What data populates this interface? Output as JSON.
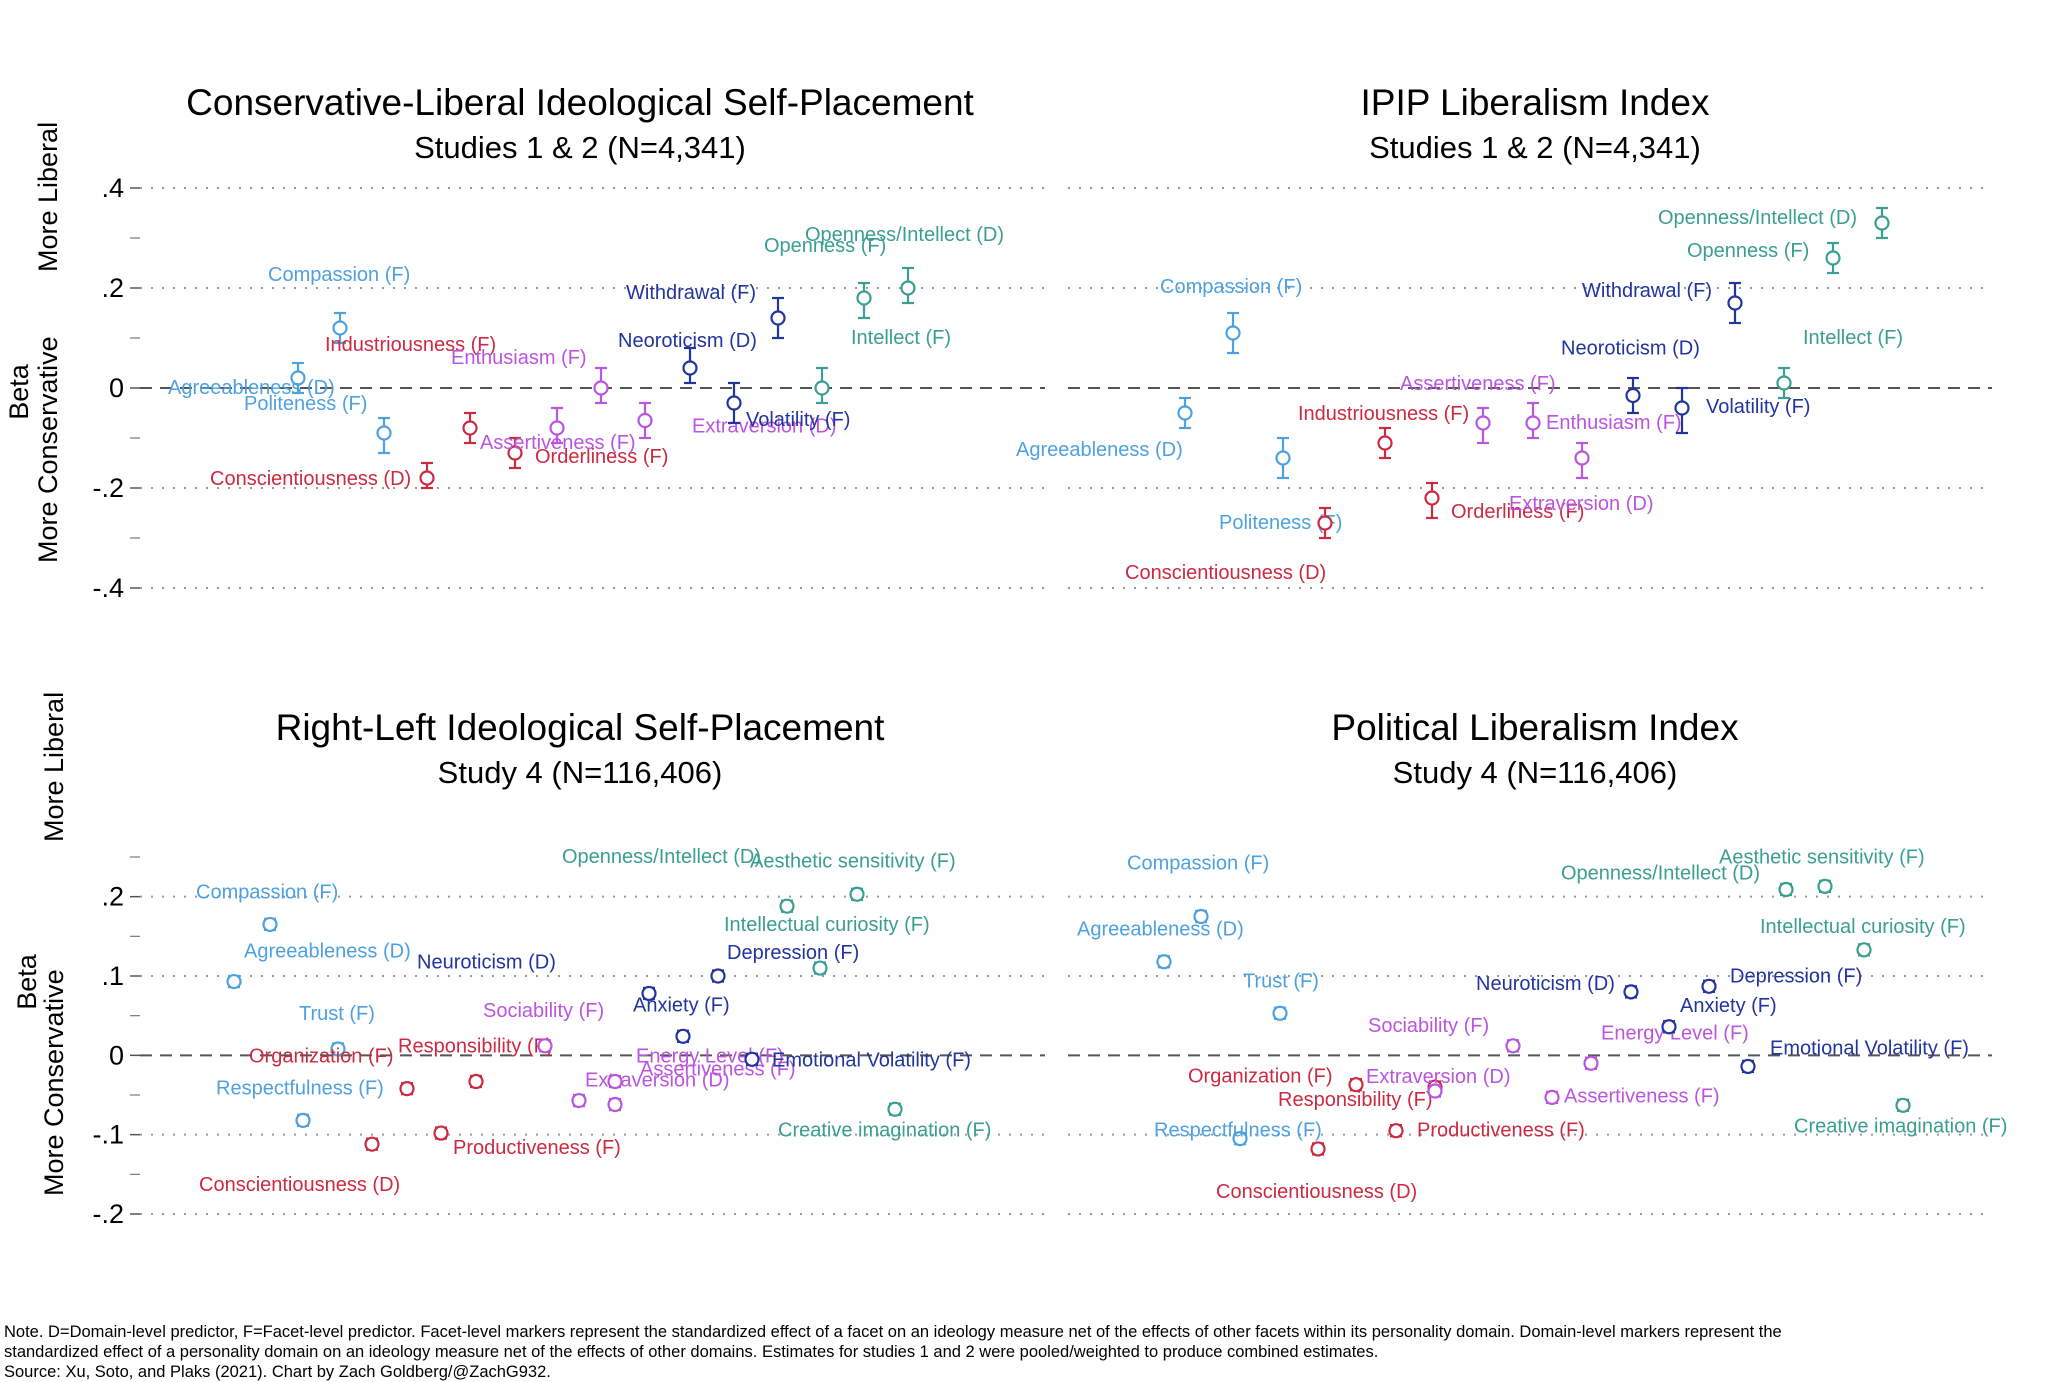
{
  "colors": {
    "agreeableness": "#4ea1e0",
    "conscientiousness": "#cc2a41",
    "extraversion": "#bb55e0",
    "neuroticism": "#22349e",
    "openness": "#3a9e92"
  },
  "note": {
    "line1": "Note. D=Domain-level predictor, F=Facet-level predictor. Facet-level markers represent the standardized effect of a facet on an ideology measure net of the effects of other facets within its personality domain. Domain-level markers represent the",
    "line2": "standardized effect of a personality domain on an ideology measure net of the effects of other domains. Estimates for studies 1 and 2 were pooled/weighted to produce combined estimates.",
    "line3": "Source: Xu, Soto, and Plaks (2021). Chart by Zach Goldberg/@ZachG932."
  },
  "chart_data": [
    {
      "type": "scatter",
      "title": "Conservative-Liberal Ideological Self-Placement",
      "subtitle": "Studies 1 & 2 (N=4,341)",
      "ylabel": "Beta",
      "ylabel_top": "More Liberal",
      "ylabel_bottom": "More Conservative",
      "ylim": [
        -0.4,
        0.4
      ],
      "yticks": [
        0.4,
        0.2,
        0,
        -0.2,
        -0.4
      ],
      "yticklabels": [
        ".4",
        ".2",
        "0",
        "-.2",
        "-.4"
      ],
      "points": [
        {
          "label": "Compassion (F)",
          "group": "agreeableness",
          "y": 0.12,
          "lo": 0.09,
          "hi": 0.15
        },
        {
          "label": "Agreeableness (D)",
          "group": "agreeableness",
          "y": 0.02,
          "lo": -0.01,
          "hi": 0.05
        },
        {
          "label": "Politeness (F)",
          "group": "agreeableness",
          "y": -0.09,
          "lo": -0.13,
          "hi": -0.06
        },
        {
          "label": "Conscientiousness (D)",
          "group": "conscientiousness",
          "y": -0.18,
          "lo": -0.2,
          "hi": -0.15
        },
        {
          "label": "Industriousness (F)",
          "group": "conscientiousness",
          "y": -0.08,
          "lo": -0.11,
          "hi": -0.05
        },
        {
          "label": "Orderliness (F)",
          "group": "conscientiousness",
          "y": -0.13,
          "lo": -0.16,
          "hi": -0.1
        },
        {
          "label": "Assertiveness (F)",
          "group": "extraversion",
          "y": -0.08,
          "lo": -0.11,
          "hi": -0.04
        },
        {
          "label": "Enthusiasm (F)",
          "group": "extraversion",
          "y": 0.0,
          "lo": -0.03,
          "hi": 0.04
        },
        {
          "label": "Extraversion (D)",
          "group": "extraversion",
          "y": -0.065,
          "lo": -0.1,
          "hi": -0.03
        },
        {
          "label": "Neoroticism (D)",
          "group": "neuroticism",
          "y": 0.04,
          "lo": 0.01,
          "hi": 0.08
        },
        {
          "label": "Volatility (F)",
          "group": "neuroticism",
          "y": -0.03,
          "lo": -0.07,
          "hi": 0.01
        },
        {
          "label": "Withdrawal (F)",
          "group": "neuroticism",
          "y": 0.14,
          "lo": 0.1,
          "hi": 0.18
        },
        {
          "label": "Intellect (F)",
          "group": "openness",
          "y": 0.0,
          "lo": -0.03,
          "hi": 0.04
        },
        {
          "label": "Openness (F)",
          "group": "openness",
          "y": 0.18,
          "lo": 0.14,
          "hi": 0.21
        },
        {
          "label": "Openness/Intellect (D)",
          "group": "openness",
          "y": 0.2,
          "lo": 0.17,
          "hi": 0.24
        }
      ]
    },
    {
      "type": "scatter",
      "title": "IPIP Liberalism Index",
      "subtitle": "Studies 1 & 2 (N=4,341)",
      "ylim": [
        -0.4,
        0.4
      ],
      "points": [
        {
          "label": "Compassion (F)",
          "group": "agreeableness",
          "y": 0.11,
          "lo": 0.07,
          "hi": 0.15
        },
        {
          "label": "Agreeableness (D)",
          "group": "agreeableness",
          "y": -0.05,
          "lo": -0.08,
          "hi": -0.02
        },
        {
          "label": "Politeness (F)",
          "group": "agreeableness",
          "y": -0.14,
          "lo": -0.18,
          "hi": -0.1
        },
        {
          "label": "Conscientiousness (D)",
          "group": "conscientiousness",
          "y": -0.27,
          "lo": -0.3,
          "hi": -0.24
        },
        {
          "label": "Industriousness (F)",
          "group": "conscientiousness",
          "y": -0.11,
          "lo": -0.14,
          "hi": -0.08
        },
        {
          "label": "Orderliness (F)",
          "group": "conscientiousness",
          "y": -0.22,
          "lo": -0.26,
          "hi": -0.19
        },
        {
          "label": "Assertiveness (F)",
          "group": "extraversion",
          "y": -0.07,
          "lo": -0.11,
          "hi": -0.04
        },
        {
          "label": "Enthusiasm (F)",
          "group": "extraversion",
          "y": -0.07,
          "lo": -0.1,
          "hi": -0.03
        },
        {
          "label": "Extraversion (D)",
          "group": "extraversion",
          "y": -0.14,
          "lo": -0.18,
          "hi": -0.11
        },
        {
          "label": "Neoroticism (D)",
          "group": "neuroticism",
          "y": -0.015,
          "lo": -0.05,
          "hi": 0.02
        },
        {
          "label": "Volatility (F)",
          "group": "neuroticism",
          "y": -0.04,
          "lo": -0.09,
          "hi": 0.0
        },
        {
          "label": "Withdrawal (F)",
          "group": "neuroticism",
          "y": 0.17,
          "lo": 0.13,
          "hi": 0.21
        },
        {
          "label": "Intellect (F)",
          "group": "openness",
          "y": 0.01,
          "lo": -0.02,
          "hi": 0.04
        },
        {
          "label": "Openness (F)",
          "group": "openness",
          "y": 0.26,
          "lo": 0.23,
          "hi": 0.29
        },
        {
          "label": "Openness/Intellect (D)",
          "group": "openness",
          "y": 0.33,
          "lo": 0.3,
          "hi": 0.36
        }
      ]
    },
    {
      "type": "scatter",
      "title": "Right-Left Ideological Self-Placement",
      "subtitle": "Study 4 (N=116,406)",
      "ylabel": "Beta",
      "ylabel_top": "More Liberal",
      "ylabel_bottom": "More Conservative",
      "ylim": [
        -0.2,
        0.25
      ],
      "yticks": [
        0.2,
        0.1,
        0,
        -0.1,
        -0.2
      ],
      "yticklabels": [
        ".2",
        ".1",
        "0",
        "-.1",
        "-.2"
      ],
      "points": [
        {
          "label": "Compassion (F)",
          "group": "agreeableness",
          "y": 0.165,
          "lo": 0.158,
          "hi": 0.172
        },
        {
          "label": "Agreeableness (D)",
          "group": "agreeableness",
          "y": 0.093,
          "lo": 0.086,
          "hi": 0.1
        },
        {
          "label": "Trust (F)",
          "group": "agreeableness",
          "y": 0.008,
          "lo": 0.001,
          "hi": 0.015
        },
        {
          "label": "Respectfulness (F)",
          "group": "agreeableness",
          "y": -0.082,
          "lo": -0.089,
          "hi": -0.075
        },
        {
          "label": "Organization (F)",
          "group": "conscientiousness",
          "y": -0.042,
          "lo": -0.049,
          "hi": -0.035
        },
        {
          "label": "Conscientiousness (D)",
          "group": "conscientiousness",
          "y": -0.112,
          "lo": -0.119,
          "hi": -0.105
        },
        {
          "label": "Productiveness (F)",
          "group": "conscientiousness",
          "y": -0.098,
          "lo": -0.105,
          "hi": -0.091
        },
        {
          "label": "Responsibility (F)",
          "group": "conscientiousness",
          "y": -0.033,
          "lo": -0.04,
          "hi": -0.026
        },
        {
          "label": "Assertiveness (F)",
          "group": "extraversion",
          "y": -0.062,
          "lo": -0.069,
          "hi": -0.055
        },
        {
          "label": "Sociability (F)",
          "group": "extraversion",
          "y": 0.012,
          "lo": 0.005,
          "hi": 0.019
        },
        {
          "label": "Extraversion (D)",
          "group": "extraversion",
          "y": -0.057,
          "lo": -0.064,
          "hi": -0.05
        },
        {
          "label": "Energy Level (F)",
          "group": "extraversion",
          "y": -0.033,
          "lo": -0.04,
          "hi": -0.026
        },
        {
          "label": "Neuroticism (D)",
          "group": "neuroticism",
          "y": 0.078,
          "lo": 0.071,
          "hi": 0.085
        },
        {
          "label": "Anxiety (F)",
          "group": "neuroticism",
          "y": 0.024,
          "lo": 0.017,
          "hi": 0.031
        },
        {
          "label": "Depression (F)",
          "group": "neuroticism",
          "y": 0.1,
          "lo": 0.093,
          "hi": 0.107
        },
        {
          "label": "Emotional Volatility (F)",
          "group": "neuroticism",
          "y": -0.005,
          "lo": -0.012,
          "hi": 0.002
        },
        {
          "label": "Openness/Intellect (D)",
          "group": "openness",
          "y": 0.188,
          "lo": 0.181,
          "hi": 0.195
        },
        {
          "label": "Intellectual curiosity (F)",
          "group": "openness",
          "y": 0.11,
          "lo": 0.103,
          "hi": 0.117
        },
        {
          "label": "Aesthetic sensitivity (F)",
          "group": "openness",
          "y": 0.203,
          "lo": 0.196,
          "hi": 0.21
        },
        {
          "label": "Creative imagination (F)",
          "group": "openness",
          "y": -0.068,
          "lo": -0.075,
          "hi": -0.061
        }
      ]
    },
    {
      "type": "scatter",
      "title": "Political Liberalism Index",
      "subtitle": "Study 4 (N=116,406)",
      "ylim": [
        -0.2,
        0.25
      ],
      "points": [
        {
          "label": "Compassion (F)",
          "group": "agreeableness",
          "y": 0.175,
          "lo": 0.168,
          "hi": 0.182
        },
        {
          "label": "Agreeableness (D)",
          "group": "agreeableness",
          "y": 0.118,
          "lo": 0.111,
          "hi": 0.125
        },
        {
          "label": "Trust (F)",
          "group": "agreeableness",
          "y": 0.053,
          "lo": 0.046,
          "hi": 0.06
        },
        {
          "label": "Respectfulness (F)",
          "group": "agreeableness",
          "y": -0.105,
          "lo": -0.112,
          "hi": -0.098
        },
        {
          "label": "Organization (F)",
          "group": "conscientiousness",
          "y": -0.037,
          "lo": -0.044,
          "hi": -0.03
        },
        {
          "label": "Conscientiousness (D)",
          "group": "conscientiousness",
          "y": -0.118,
          "lo": -0.125,
          "hi": -0.111
        },
        {
          "label": "Responsibility (F)",
          "group": "conscientiousness",
          "y": -0.04,
          "lo": -0.047,
          "hi": -0.033
        },
        {
          "label": "Productiveness (F)",
          "group": "conscientiousness",
          "y": -0.095,
          "lo": -0.102,
          "hi": -0.088
        },
        {
          "label": "Extraversion (D)",
          "group": "extraversion",
          "y": -0.045,
          "lo": -0.052,
          "hi": -0.038
        },
        {
          "label": "Sociability (F)",
          "group": "extraversion",
          "y": 0.012,
          "lo": 0.005,
          "hi": 0.019
        },
        {
          "label": "Energy Level (F)",
          "group": "extraversion",
          "y": -0.01,
          "lo": -0.017,
          "hi": -0.003
        },
        {
          "label": "Assertiveness (F)",
          "group": "extraversion",
          "y": -0.053,
          "lo": -0.06,
          "hi": -0.046
        },
        {
          "label": "Neuroticism (D)",
          "group": "neuroticism",
          "y": 0.08,
          "lo": 0.073,
          "hi": 0.087
        },
        {
          "label": "Anxiety (F)",
          "group": "neuroticism",
          "y": 0.036,
          "lo": 0.029,
          "hi": 0.043
        },
        {
          "label": "Depression (F)",
          "group": "neuroticism",
          "y": 0.087,
          "lo": 0.08,
          "hi": 0.094
        },
        {
          "label": "Emotional Volatility (F)",
          "group": "neuroticism",
          "y": -0.014,
          "lo": -0.021,
          "hi": -0.007
        },
        {
          "label": "Openness/Intellect (D)",
          "group": "openness",
          "y": 0.209,
          "lo": 0.202,
          "hi": 0.216
        },
        {
          "label": "Aesthetic sensitivity (F)",
          "group": "openness",
          "y": 0.213,
          "lo": 0.206,
          "hi": 0.22
        },
        {
          "label": "Intellectual curiosity (F)",
          "group": "openness",
          "y": 0.133,
          "lo": 0.126,
          "hi": 0.14
        },
        {
          "label": "Creative imagination (F)",
          "group": "openness",
          "y": -0.063,
          "lo": -0.07,
          "hi": -0.056
        }
      ]
    }
  ]
}
